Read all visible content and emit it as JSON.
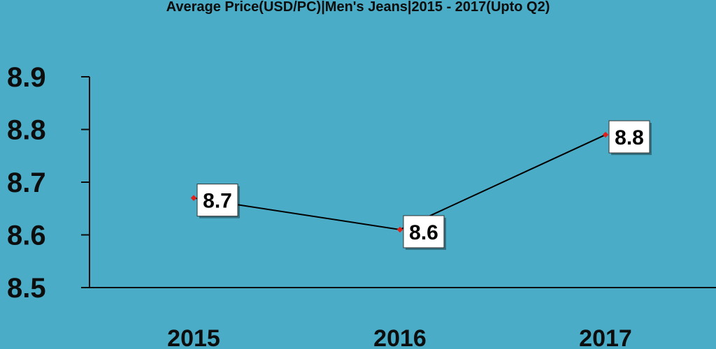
{
  "chart_data": {
    "type": "line",
    "title": "Average Price(USD/PC)|Men's Jeans|2015 - 2017(Upto Q2)",
    "xlabel": "",
    "ylabel": "",
    "categories": [
      "2015",
      "2016",
      "2017"
    ],
    "series": [
      {
        "values": [
          8.67,
          8.61,
          8.79
        ],
        "data_labels": [
          "8.7",
          "8.6",
          "8.8"
        ]
      }
    ],
    "ylim": [
      8.5,
      8.9
    ],
    "yticks": [
      "8.5",
      "8.6",
      "8.7",
      "8.8",
      "8.9"
    ],
    "grid": false,
    "legend": "none",
    "colors": {
      "background": "#4aacc6",
      "line": "#000000",
      "marker": "#e0201b",
      "label_box": "#ffffff",
      "text": "#0d0d0d"
    }
  }
}
